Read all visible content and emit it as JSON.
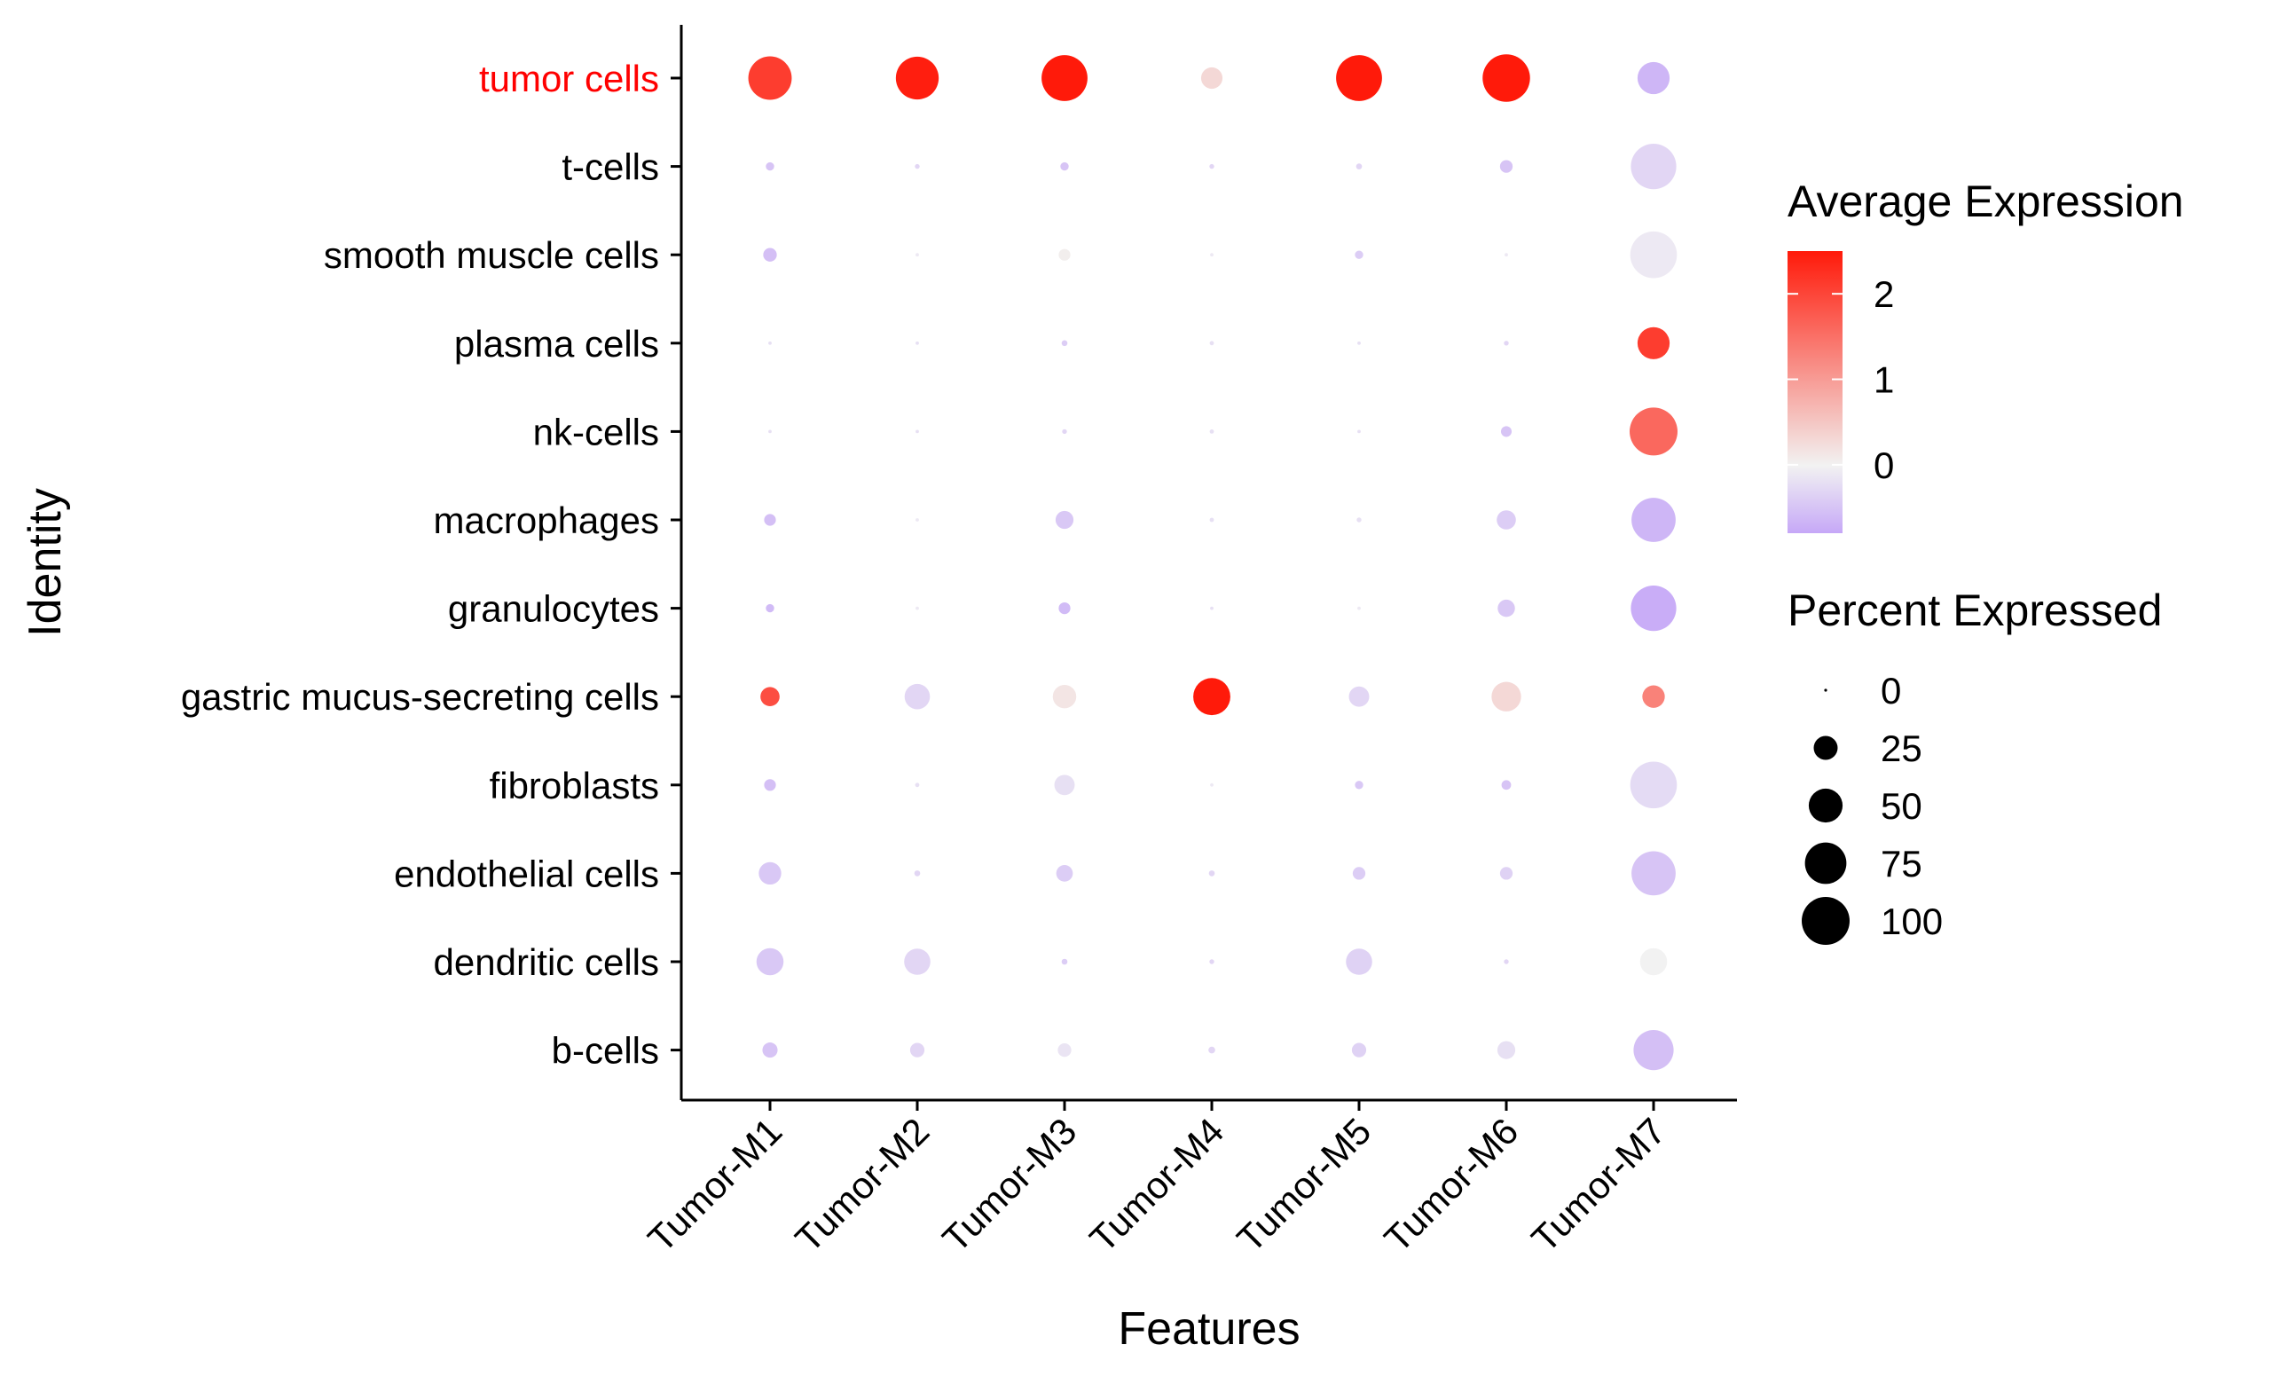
{
  "chart_data": {
    "type": "dotplot",
    "xlabel": "Features",
    "ylabel": "Identity",
    "categories_x": [
      "Tumor-M1",
      "Tumor-M2",
      "Tumor-M3",
      "Tumor-M4",
      "Tumor-M5",
      "Tumor-M6",
      "Tumor-M7"
    ],
    "categories_y": [
      "tumor cells",
      "t-cells",
      "smooth muscle cells",
      "plasma cells",
      "nk-cells",
      "macrophages",
      "granulocytes",
      "gastric mucus-secreting cells",
      "fibroblasts",
      "endothelial cells",
      "dendritic cells",
      "b-cells"
    ],
    "highlight_label": "tumor cells",
    "highlight_color": "#ff0000",
    "color_low": "#c6a8f7",
    "color_mid": "#f2f2f2",
    "color_high": "#ff1a0a",
    "color_range": [
      -0.8,
      2.5
    ],
    "size_range": [
      0,
      100
    ],
    "legend_color": {
      "title": "Average Expression",
      "ticks": [
        2,
        1,
        0
      ]
    },
    "legend_size": {
      "title": "Percent Expressed",
      "ticks": [
        0,
        25,
        50,
        75,
        100
      ]
    },
    "points": [
      {
        "x": "Tumor-M1",
        "y": "tumor cells",
        "avg_exp": 2.1,
        "pct": 82
      },
      {
        "x": "Tumor-M2",
        "y": "tumor cells",
        "avg_exp": 2.45,
        "pct": 80
      },
      {
        "x": "Tumor-M3",
        "y": "tumor cells",
        "avg_exp": 2.5,
        "pct": 92
      },
      {
        "x": "Tumor-M4",
        "y": "tumor cells",
        "avg_exp": 0.3,
        "pct": 20
      },
      {
        "x": "Tumor-M5",
        "y": "tumor cells",
        "avg_exp": 2.5,
        "pct": 92
      },
      {
        "x": "Tumor-M6",
        "y": "tumor cells",
        "avg_exp": 2.5,
        "pct": 98
      },
      {
        "x": "Tumor-M7",
        "y": "tumor cells",
        "avg_exp": -0.65,
        "pct": 45
      },
      {
        "x": "Tumor-M1",
        "y": "t-cells",
        "avg_exp": -0.5,
        "pct": 3
      },
      {
        "x": "Tumor-M2",
        "y": "t-cells",
        "avg_exp": -0.3,
        "pct": 1
      },
      {
        "x": "Tumor-M3",
        "y": "t-cells",
        "avg_exp": -0.5,
        "pct": 3
      },
      {
        "x": "Tumor-M4",
        "y": "t-cells",
        "avg_exp": -0.3,
        "pct": 1
      },
      {
        "x": "Tumor-M5",
        "y": "t-cells",
        "avg_exp": -0.3,
        "pct": 1.5
      },
      {
        "x": "Tumor-M6",
        "y": "t-cells",
        "avg_exp": -0.5,
        "pct": 7
      },
      {
        "x": "Tumor-M7",
        "y": "t-cells",
        "avg_exp": -0.3,
        "pct": 90
      },
      {
        "x": "Tumor-M1",
        "y": "smooth muscle cells",
        "avg_exp": -0.55,
        "pct": 8
      },
      {
        "x": "Tumor-M2",
        "y": "smooth muscle cells",
        "avg_exp": -0.1,
        "pct": 0.5
      },
      {
        "x": "Tumor-M3",
        "y": "smooth muscle cells",
        "avg_exp": 0.05,
        "pct": 6
      },
      {
        "x": "Tumor-M4",
        "y": "smooth muscle cells",
        "avg_exp": -0.1,
        "pct": 0.5
      },
      {
        "x": "Tumor-M5",
        "y": "smooth muscle cells",
        "avg_exp": -0.4,
        "pct": 3
      },
      {
        "x": "Tumor-M6",
        "y": "smooth muscle cells",
        "avg_exp": -0.1,
        "pct": 0.5
      },
      {
        "x": "Tumor-M7",
        "y": "smooth muscle cells",
        "avg_exp": -0.1,
        "pct": 95
      },
      {
        "x": "Tumor-M1",
        "y": "plasma cells",
        "avg_exp": -0.2,
        "pct": 0.5
      },
      {
        "x": "Tumor-M2",
        "y": "plasma cells",
        "avg_exp": -0.2,
        "pct": 0.5
      },
      {
        "x": "Tumor-M3",
        "y": "plasma cells",
        "avg_exp": -0.4,
        "pct": 1.5
      },
      {
        "x": "Tumor-M4",
        "y": "plasma cells",
        "avg_exp": -0.2,
        "pct": 0.8
      },
      {
        "x": "Tumor-M5",
        "y": "plasma cells",
        "avg_exp": -0.2,
        "pct": 0.5
      },
      {
        "x": "Tumor-M6",
        "y": "plasma cells",
        "avg_exp": -0.3,
        "pct": 1
      },
      {
        "x": "Tumor-M7",
        "y": "plasma cells",
        "avg_exp": 2.1,
        "pct": 45
      },
      {
        "x": "Tumor-M1",
        "y": "nk-cells",
        "avg_exp": -0.2,
        "pct": 0.5
      },
      {
        "x": "Tumor-M2",
        "y": "nk-cells",
        "avg_exp": -0.2,
        "pct": 0.5
      },
      {
        "x": "Tumor-M3",
        "y": "nk-cells",
        "avg_exp": -0.3,
        "pct": 1
      },
      {
        "x": "Tumor-M4",
        "y": "nk-cells",
        "avg_exp": -0.2,
        "pct": 0.8
      },
      {
        "x": "Tumor-M5",
        "y": "nk-cells",
        "avg_exp": -0.2,
        "pct": 0.5
      },
      {
        "x": "Tumor-M6",
        "y": "nk-cells",
        "avg_exp": -0.5,
        "pct": 5
      },
      {
        "x": "Tumor-M7",
        "y": "nk-cells",
        "avg_exp": 1.6,
        "pct": 100
      },
      {
        "x": "Tumor-M1",
        "y": "macrophages",
        "avg_exp": -0.55,
        "pct": 6
      },
      {
        "x": "Tumor-M2",
        "y": "macrophages",
        "avg_exp": -0.1,
        "pct": 0.5
      },
      {
        "x": "Tumor-M3",
        "y": "macrophages",
        "avg_exp": -0.45,
        "pct": 14
      },
      {
        "x": "Tumor-M4",
        "y": "macrophages",
        "avg_exp": -0.2,
        "pct": 0.8
      },
      {
        "x": "Tumor-M5",
        "y": "macrophages",
        "avg_exp": -0.2,
        "pct": 1
      },
      {
        "x": "Tumor-M6",
        "y": "macrophages",
        "avg_exp": -0.4,
        "pct": 16
      },
      {
        "x": "Tumor-M7",
        "y": "macrophages",
        "avg_exp": -0.65,
        "pct": 85
      },
      {
        "x": "Tumor-M1",
        "y": "granulocytes",
        "avg_exp": -0.6,
        "pct": 3
      },
      {
        "x": "Tumor-M2",
        "y": "granulocytes",
        "avg_exp": -0.1,
        "pct": 0.5
      },
      {
        "x": "Tumor-M3",
        "y": "granulocytes",
        "avg_exp": -0.6,
        "pct": 6
      },
      {
        "x": "Tumor-M4",
        "y": "granulocytes",
        "avg_exp": -0.2,
        "pct": 0.5
      },
      {
        "x": "Tumor-M5",
        "y": "granulocytes",
        "avg_exp": -0.1,
        "pct": 0.5
      },
      {
        "x": "Tumor-M6",
        "y": "granulocytes",
        "avg_exp": -0.45,
        "pct": 13
      },
      {
        "x": "Tumor-M7",
        "y": "granulocytes",
        "avg_exp": -0.75,
        "pct": 90
      },
      {
        "x": "Tumor-M1",
        "y": "gastric mucus-secreting cells",
        "avg_exp": 1.9,
        "pct": 16
      },
      {
        "x": "Tumor-M2",
        "y": "gastric mucus-secreting cells",
        "avg_exp": -0.3,
        "pct": 28
      },
      {
        "x": "Tumor-M3",
        "y": "gastric mucus-secreting cells",
        "avg_exp": 0.15,
        "pct": 24
      },
      {
        "x": "Tumor-M4",
        "y": "gastric mucus-secreting cells",
        "avg_exp": 2.5,
        "pct": 60
      },
      {
        "x": "Tumor-M5",
        "y": "gastric mucus-secreting cells",
        "avg_exp": -0.3,
        "pct": 18
      },
      {
        "x": "Tumor-M6",
        "y": "gastric mucus-secreting cells",
        "avg_exp": 0.3,
        "pct": 38
      },
      {
        "x": "Tumor-M7",
        "y": "gastric mucus-secreting cells",
        "avg_exp": 1.3,
        "pct": 22
      },
      {
        "x": "Tumor-M1",
        "y": "fibroblasts",
        "avg_exp": -0.55,
        "pct": 6
      },
      {
        "x": "Tumor-M2",
        "y": "fibroblasts",
        "avg_exp": -0.2,
        "pct": 0.8
      },
      {
        "x": "Tumor-M3",
        "y": "fibroblasts",
        "avg_exp": -0.2,
        "pct": 18
      },
      {
        "x": "Tumor-M4",
        "y": "fibroblasts",
        "avg_exp": -0.1,
        "pct": 0.5
      },
      {
        "x": "Tumor-M5",
        "y": "fibroblasts",
        "avg_exp": -0.45,
        "pct": 3
      },
      {
        "x": "Tumor-M6",
        "y": "fibroblasts",
        "avg_exp": -0.5,
        "pct": 4
      },
      {
        "x": "Tumor-M7",
        "y": "fibroblasts",
        "avg_exp": -0.25,
        "pct": 95
      },
      {
        "x": "Tumor-M1",
        "y": "endothelial cells",
        "avg_exp": -0.45,
        "pct": 22
      },
      {
        "x": "Tumor-M2",
        "y": "endothelial cells",
        "avg_exp": -0.3,
        "pct": 1.5
      },
      {
        "x": "Tumor-M3",
        "y": "endothelial cells",
        "avg_exp": -0.4,
        "pct": 12
      },
      {
        "x": "Tumor-M4",
        "y": "endothelial cells",
        "avg_exp": -0.3,
        "pct": 1.5
      },
      {
        "x": "Tumor-M5",
        "y": "endothelial cells",
        "avg_exp": -0.4,
        "pct": 7
      },
      {
        "x": "Tumor-M6",
        "y": "endothelial cells",
        "avg_exp": -0.35,
        "pct": 7
      },
      {
        "x": "Tumor-M7",
        "y": "endothelial cells",
        "avg_exp": -0.5,
        "pct": 85
      },
      {
        "x": "Tumor-M1",
        "y": "dendritic cells",
        "avg_exp": -0.45,
        "pct": 32
      },
      {
        "x": "Tumor-M2",
        "y": "dendritic cells",
        "avg_exp": -0.3,
        "pct": 30
      },
      {
        "x": "Tumor-M3",
        "y": "dendritic cells",
        "avg_exp": -0.4,
        "pct": 1.5
      },
      {
        "x": "Tumor-M4",
        "y": "dendritic cells",
        "avg_exp": -0.3,
        "pct": 1
      },
      {
        "x": "Tumor-M5",
        "y": "dendritic cells",
        "avg_exp": -0.35,
        "pct": 30
      },
      {
        "x": "Tumor-M6",
        "y": "dendritic cells",
        "avg_exp": -0.3,
        "pct": 1
      },
      {
        "x": "Tumor-M7",
        "y": "dendritic cells",
        "avg_exp": 0.0,
        "pct": 32
      },
      {
        "x": "Tumor-M1",
        "y": "b-cells",
        "avg_exp": -0.5,
        "pct": 10
      },
      {
        "x": "Tumor-M2",
        "y": "b-cells",
        "avg_exp": -0.3,
        "pct": 9
      },
      {
        "x": "Tumor-M3",
        "y": "b-cells",
        "avg_exp": -0.15,
        "pct": 8
      },
      {
        "x": "Tumor-M4",
        "y": "b-cells",
        "avg_exp": -0.3,
        "pct": 2
      },
      {
        "x": "Tumor-M5",
        "y": "b-cells",
        "avg_exp": -0.35,
        "pct": 9
      },
      {
        "x": "Tumor-M6",
        "y": "b-cells",
        "avg_exp": -0.2,
        "pct": 14
      },
      {
        "x": "Tumor-M7",
        "y": "b-cells",
        "avg_exp": -0.55,
        "pct": 70
      }
    ]
  }
}
